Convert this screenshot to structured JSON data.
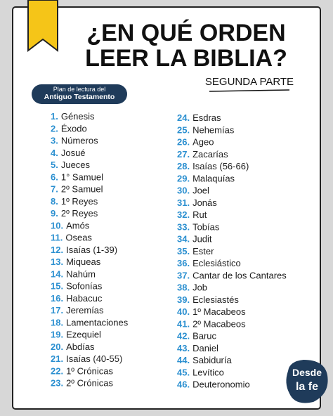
{
  "header": {
    "title_lines": [
      "¿EN QUÉ ORDEN",
      "LEER LA BIBLIA?"
    ],
    "subtitle": "SEGUNDA PARTE"
  },
  "badge": {
    "lines": [
      "Plan de lectura del",
      "Antiguo Testamento"
    ]
  },
  "columns": [
    [
      {
        "num": "1.",
        "name": "Génesis"
      },
      {
        "num": "2.",
        "name": "Éxodo"
      },
      {
        "num": "3.",
        "name": "Números"
      },
      {
        "num": "4.",
        "name": "Josué"
      },
      {
        "num": "5.",
        "name": "Jueces"
      },
      {
        "num": "6.",
        "name": "1° Samuel"
      },
      {
        "num": "7.",
        "name": "2º Samuel"
      },
      {
        "num": "8.",
        "name": "1º Reyes"
      },
      {
        "num": "9.",
        "name": "2º Reyes"
      },
      {
        "num": "10.",
        "name": "Amós"
      },
      {
        "num": "11.",
        "name": "Oseas"
      },
      {
        "num": "12.",
        "name": "Isaías (1-39)"
      },
      {
        "num": "13.",
        "name": "Miqueas"
      },
      {
        "num": "14.",
        "name": "Nahúm"
      },
      {
        "num": "15.",
        "name": "Sofonías"
      },
      {
        "num": "16.",
        "name": "Habacuc"
      },
      {
        "num": "17.",
        "name": "Jeremías"
      },
      {
        "num": "18.",
        "name": "Lamentaciones"
      },
      {
        "num": "19.",
        "name": "Ezequiel"
      },
      {
        "num": "20.",
        "name": "Abdías"
      },
      {
        "num": "21.",
        "name": "Isaías (40-55)"
      },
      {
        "num": "22.",
        "name": "1º Crónicas"
      },
      {
        "num": "23.",
        "name": "2º Crónicas"
      }
    ],
    [
      {
        "num": "24.",
        "name": "Esdras"
      },
      {
        "num": "25.",
        "name": "Nehemías"
      },
      {
        "num": "26.",
        "name": "Ageo"
      },
      {
        "num": "27.",
        "name": "Zacarías"
      },
      {
        "num": "28.",
        "name": "Isaías (56-66)"
      },
      {
        "num": "29.",
        "name": "Malaquías"
      },
      {
        "num": "30.",
        "name": "Joel"
      },
      {
        "num": "31.",
        "name": "Jonás"
      },
      {
        "num": "32.",
        "name": "Rut"
      },
      {
        "num": "33.",
        "name": "Tobías"
      },
      {
        "num": "34.",
        "name": "Judit"
      },
      {
        "num": "35.",
        "name": "Ester"
      },
      {
        "num": "36.",
        "name": "Eclesiástico"
      },
      {
        "num": "37.",
        "name": "Cantar de los Cantares"
      },
      {
        "num": "38.",
        "name": "Job"
      },
      {
        "num": "39.",
        "name": "Eclesiastés"
      },
      {
        "num": "40.",
        "name": "1º Macabeos"
      },
      {
        "num": "41.",
        "name": "2º Macabeos"
      },
      {
        "num": "42.",
        "name": "Baruc"
      },
      {
        "num": "43.",
        "name": "Daniel"
      },
      {
        "num": "44.",
        "name": "Sabiduría"
      },
      {
        "num": "45.",
        "name": "Levítico"
      },
      {
        "num": "46.",
        "name": "Deuteronomio"
      }
    ]
  ],
  "logo": {
    "lines": [
      "Desde",
      "la fe"
    ]
  }
}
